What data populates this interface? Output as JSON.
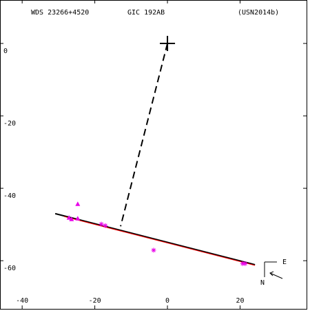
{
  "chart_data": {
    "type": "scatter",
    "title": "WDS 23266+4520",
    "subtitle": "GIC 192AB",
    "reference": "(USN2014b)",
    "xlim": [
      -46.1,
      38.3
    ],
    "ylim": [
      -73.3,
      12
    ],
    "xticks": [
      -40,
      -20,
      0,
      20
    ],
    "yticks": [
      0,
      -20,
      -40,
      -60
    ],
    "compass_labels": [
      "E",
      "N"
    ],
    "primary": {
      "x": 0,
      "y": 0
    },
    "node_line": {
      "x": [
        0,
        -12.9
      ],
      "y": [
        0,
        -50.5
      ]
    },
    "series": [
      {
        "color": "#000000",
        "marker": "line",
        "x": [
          -30.9,
          24.1
        ],
        "values": [
          -47,
          -61.1
        ]
      },
      {
        "color": "#ff0000",
        "marker": "line",
        "x": [
          -28.5,
          24.1
        ],
        "values": [
          -47.8,
          -61.3
        ]
      },
      {
        "color": "#e800e8",
        "marker": "star",
        "x": [
          -18.2,
          -17.1,
          -3.8,
          20.7,
          21.4
        ],
        "values": [
          -49.9,
          -50.3,
          -57.1,
          -60.8,
          -60.8
        ]
      },
      {
        "color": "#e800e8",
        "marker": "triangle",
        "x": [
          -27.1,
          -26.4,
          -24.7,
          -24.7
        ],
        "values": [
          -48.2,
          -48.6,
          -48.4,
          -44.4
        ]
      }
    ]
  }
}
